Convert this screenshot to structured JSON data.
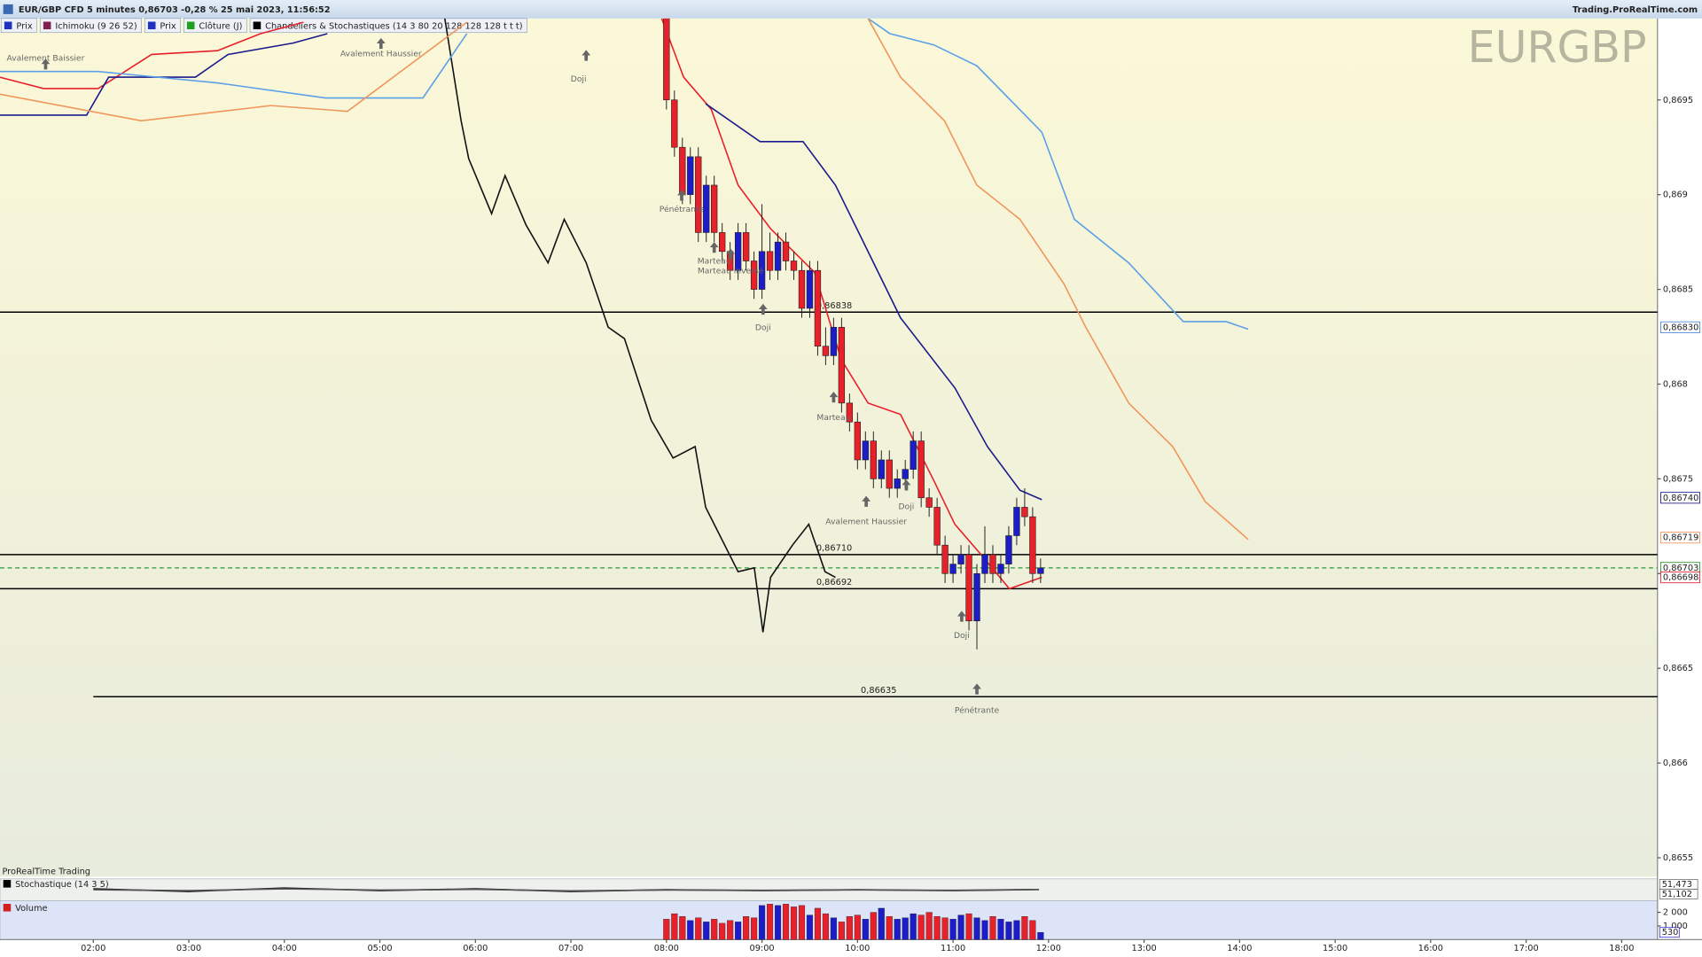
{
  "header": {
    "title": "EUR/GBP CFD 5 minutes 0,86703 -0,28 % 25 mai 2023, 11:56:52",
    "site": "Trading.ProRealTime.com",
    "legend": [
      "Prix",
      "Ichimoku (9 26 52)",
      "Prix",
      "Clôture (J)",
      "Chandeliers & Stochastiques (14 3 80 20 128 128 128 t t t)"
    ],
    "footer": "ProRealTime Trading"
  },
  "chart_data": [
    {
      "type": "candlestick",
      "title": "EURGBP",
      "x": [
        "08:00",
        "08:05",
        "08:10",
        "08:15",
        "08:20",
        "08:25",
        "08:30",
        "08:35",
        "08:40",
        "08:45",
        "08:50",
        "08:55",
        "09:00",
        "09:05",
        "09:10",
        "09:15",
        "09:20",
        "09:25",
        "09:30",
        "09:35",
        "09:40",
        "09:45",
        "09:50",
        "09:55",
        "10:00",
        "10:05",
        "10:10",
        "10:15",
        "10:20",
        "10:25",
        "10:30",
        "10:35",
        "10:40",
        "10:45",
        "10:50",
        "10:55",
        "11:00",
        "11:05",
        "11:10",
        "11:15",
        "11:20",
        "11:25",
        "11:30",
        "11:35",
        "11:40",
        "11:45",
        "11:50",
        "11:55"
      ],
      "open": [
        0.86995,
        0.8695,
        0.86925,
        0.869,
        0.8692,
        0.8688,
        0.86905,
        0.8688,
        0.8687,
        0.8686,
        0.8688,
        0.86865,
        0.8685,
        0.8687,
        0.8686,
        0.86875,
        0.86865,
        0.8686,
        0.8684,
        0.8686,
        0.8682,
        0.86815,
        0.8683,
        0.8679,
        0.8678,
        0.8676,
        0.8677,
        0.8675,
        0.8676,
        0.86745,
        0.8675,
        0.86755,
        0.8677,
        0.8674,
        0.86735,
        0.86715,
        0.867,
        0.86705,
        0.8671,
        0.86675,
        0.867,
        0.8671,
        0.867,
        0.86705,
        0.8672,
        0.86735,
        0.8673,
        0.867
      ],
      "high": [
        0.87,
        0.86955,
        0.8693,
        0.86925,
        0.86925,
        0.8691,
        0.8691,
        0.86885,
        0.86875,
        0.86885,
        0.86885,
        0.8687,
        0.86895,
        0.8688,
        0.8688,
        0.8688,
        0.8687,
        0.86865,
        0.86865,
        0.86865,
        0.8683,
        0.86835,
        0.86835,
        0.86795,
        0.86785,
        0.86775,
        0.86775,
        0.86765,
        0.86765,
        0.86755,
        0.8676,
        0.86775,
        0.86775,
        0.86745,
        0.8674,
        0.8672,
        0.8671,
        0.86715,
        0.86715,
        0.86705,
        0.86725,
        0.86715,
        0.8671,
        0.86725,
        0.8674,
        0.86745,
        0.86735,
        0.86708
      ],
      "low": [
        0.86945,
        0.8692,
        0.86895,
        0.86895,
        0.86875,
        0.86875,
        0.86875,
        0.86865,
        0.86855,
        0.86855,
        0.8686,
        0.86845,
        0.86845,
        0.86855,
        0.86855,
        0.8686,
        0.86855,
        0.86835,
        0.86835,
        0.86815,
        0.8681,
        0.8681,
        0.86785,
        0.86775,
        0.86755,
        0.86755,
        0.86745,
        0.86745,
        0.8674,
        0.8674,
        0.86745,
        0.8675,
        0.86735,
        0.8673,
        0.8671,
        0.86695,
        0.86695,
        0.867,
        0.8667,
        0.8666,
        0.86695,
        0.86695,
        0.86695,
        0.867,
        0.86715,
        0.86725,
        0.86695,
        0.86695
      ],
      "close": [
        0.8695,
        0.86925,
        0.869,
        0.8692,
        0.8688,
        0.86905,
        0.8688,
        0.8687,
        0.8686,
        0.8688,
        0.86865,
        0.8685,
        0.8687,
        0.8686,
        0.86875,
        0.86865,
        0.8686,
        0.8684,
        0.8686,
        0.8682,
        0.86815,
        0.8683,
        0.8679,
        0.8678,
        0.8676,
        0.8677,
        0.8675,
        0.8676,
        0.86745,
        0.8675,
        0.86755,
        0.8677,
        0.8674,
        0.86735,
        0.86715,
        0.867,
        0.86705,
        0.8671,
        0.86675,
        0.867,
        0.8671,
        0.867,
        0.86705,
        0.8672,
        0.86735,
        0.8673,
        0.867,
        0.86703
      ],
      "up_color": "#1c1cc8",
      "down_color": "#e8202a",
      "series": [
        {
          "color": "#e8202a",
          "x": [
            1.02,
            1.48,
            2.05,
            2.61,
            3.3,
            3.75,
            4.2,
            6.0,
            7.95,
            8.18,
            8.47,
            8.75,
            9.09,
            9.55,
            9.83,
            10.11,
            10.45,
            10.8,
            11.02,
            11.31,
            11.59,
            11.93
          ],
          "values": [
            0.86962,
            0.86956,
            0.86956,
            0.86974,
            0.86976,
            0.86985,
            0.86991,
            null,
            0.86993,
            0.86962,
            0.86945,
            0.86905,
            0.86882,
            0.86859,
            0.86813,
            0.8679,
            0.86784,
            0.86749,
            0.86726,
            0.86709,
            0.86692,
            0.86698
          ]
        },
        {
          "color": "#1a1a8c",
          "x": [
            1.02,
            1.93,
            2.16,
            3.07,
            3.41,
            4.09,
            4.45,
            6.0,
            8.41,
            8.98,
            9.43,
            9.77,
            10.11,
            10.45,
            11.02,
            11.36,
            11.7,
            11.93
          ],
          "values": [
            0.86942,
            0.86942,
            0.86962,
            0.86962,
            0.86974,
            0.8698,
            0.86985,
            null,
            0.86948,
            0.86928,
            0.86928,
            0.86905,
            0.8687,
            0.86835,
            0.86798,
            0.86767,
            0.86744,
            0.86739
          ]
        },
        {
          "color": "#111111",
          "x": [
            5.68,
            5.85,
            5.93,
            6.17,
            6.31,
            6.53,
            6.76,
            6.93,
            7.16,
            7.39,
            7.56,
            7.84,
            8.07,
            8.3,
            8.41,
            8.75,
            8.92,
            9.01,
            9.09,
            9.32,
            9.49,
            9.66,
            9.77
          ],
          "values": [
            0.86993,
            0.86939,
            0.86919,
            0.8689,
            0.8691,
            0.86884,
            0.86864,
            0.86887,
            0.86864,
            0.8683,
            0.86824,
            0.86781,
            0.86761,
            0.86767,
            0.86735,
            0.86701,
            0.86703,
            0.86669,
            0.86698,
            0.86715,
            0.86726,
            0.86701,
            0.86698
          ]
        },
        {
          "color": "#5aa0e8",
          "x": [
            1.02,
            2.05,
            3.3,
            4.43,
            5.45,
            5.91,
            6.5,
            10.11,
            10.34,
            10.8,
            11.25,
            11.93,
            12.27,
            12.84,
            13.41,
            13.86,
            14.09
          ],
          "values": [
            0.86965,
            0.86965,
            0.86959,
            0.86951,
            0.86951,
            0.86985,
            null,
            0.86993,
            0.86985,
            0.86979,
            0.86968,
            0.86933,
            0.86887,
            0.86864,
            0.86833,
            0.86833,
            0.86829
          ]
        },
        {
          "color": "#f0965a",
          "x": [
            1.02,
            2.5,
            3.86,
            4.66,
            5.91,
            6.5,
            10.11,
            10.45,
            10.91,
            11.25,
            11.7,
            12.16,
            12.39,
            12.84,
            13.3,
            13.64,
            14.09
          ],
          "values": [
            0.86953,
            0.86939,
            0.86947,
            0.86944,
            0.86991,
            null,
            0.86993,
            0.86962,
            0.86939,
            0.86905,
            0.86887,
            0.86853,
            0.8683,
            0.8679,
            0.86767,
            0.86738,
            0.86718
          ]
        }
      ],
      "levels": [
        {
          "value": 0.86838,
          "label": "0,86838"
        },
        {
          "value": 0.8671,
          "label": "0,86710"
        },
        {
          "value": 0.86692,
          "label": "0,86692"
        },
        {
          "value": 0.86635,
          "label": "0,86635"
        }
      ],
      "current": 0.86703,
      "price_labels": [
        {
          "value": 0.8683,
          "label": "0,86830",
          "color": "#4a8ad8"
        },
        {
          "value": 0.8674,
          "label": "0,86740",
          "color": "#1a1a8c"
        },
        {
          "value": 0.86719,
          "label": "0,86719",
          "color": "#f0965a"
        },
        {
          "value": 0.86703,
          "label": "0,86703",
          "color": "#f5c400"
        },
        {
          "value": 0.86703,
          "label": "0,86703",
          "color": "#2a9a3a"
        },
        {
          "value": 0.86698,
          "label": "0,86698",
          "color": "#e8202a"
        }
      ],
      "annotations": [
        "Pénétrante",
        "Marteau",
        "Doji",
        "Marteau",
        "Avalement Haussier",
        "Doji",
        "Doji",
        "Pénétrante",
        "Avalement Baissier",
        "Avalement Haussier",
        "Doji",
        "Marteau inversé"
      ],
      "xlim": [
        1.023,
        18.375
      ],
      "xticks": [
        {
          "value": 2,
          "label": "02:00"
        },
        {
          "value": 3,
          "label": "03:00"
        },
        {
          "value": 4,
          "label": "04:00"
        },
        {
          "value": 5,
          "label": "05:00"
        },
        {
          "value": 6,
          "label": "06:00"
        },
        {
          "value": 7,
          "label": "07:00"
        },
        {
          "value": 8,
          "label": "08:00"
        },
        {
          "value": 9,
          "label": "09:00"
        },
        {
          "value": 10,
          "label": "10:00"
        },
        {
          "value": 11,
          "label": "11:00"
        },
        {
          "value": 12,
          "label": "12:00"
        },
        {
          "value": 13,
          "label": "13:00"
        },
        {
          "value": 14,
          "label": "14:00"
        },
        {
          "value": 15,
          "label": "15:00"
        },
        {
          "value": 16,
          "label": "16:00"
        },
        {
          "value": 17,
          "label": "17:00"
        },
        {
          "value": 18,
          "label": "18:00"
        }
      ],
      "ylim": [
        0.8654,
        0.86993
      ],
      "yticks": [
        {
          "value": 0.8655,
          "label": "0,8655"
        },
        {
          "value": 0.866,
          "label": "0,866"
        },
        {
          "value": 0.8665,
          "label": "0,8665"
        },
        {
          "value": 0.867,
          "label": "0,867"
        },
        {
          "value": 0.8675,
          "label": "0,8675"
        },
        {
          "value": 0.868,
          "label": "0,868"
        },
        {
          "value": 0.8685,
          "label": "0,8685"
        },
        {
          "value": 0.869,
          "label": "0,869"
        },
        {
          "value": 0.8695,
          "label": "0,8695"
        }
      ]
    },
    {
      "type": "line",
      "title": "Stochastique (14 3 5)",
      "ylim": [
        0,
        100
      ],
      "series": [
        {
          "color": "#111111",
          "x": [
            2,
            3,
            4,
            5,
            6,
            7,
            8,
            9,
            10,
            11,
            11.9
          ],
          "values": [
            55,
            40,
            60,
            45,
            55,
            40,
            50,
            45,
            50,
            45,
            51.473
          ]
        },
        {
          "color": "#555555",
          "x": [
            2,
            3,
            4,
            5,
            6,
            7,
            8,
            9,
            10,
            11,
            11.9
          ],
          "values": [
            50,
            45,
            55,
            48,
            52,
            44,
            48,
            47,
            49,
            47,
            51.102
          ]
        }
      ],
      "last_labels": [
        {
          "value": 51.473,
          "label": "51,473"
        },
        {
          "value": 51.102,
          "label": "51,102"
        }
      ]
    },
    {
      "type": "bar",
      "title": "Volume",
      "x": [
        "08:00",
        "08:05",
        "08:10",
        "08:15",
        "08:20",
        "08:25",
        "08:30",
        "08:35",
        "08:40",
        "08:45",
        "08:50",
        "08:55",
        "09:00",
        "09:05",
        "09:10",
        "09:15",
        "09:20",
        "09:25",
        "09:30",
        "09:35",
        "09:40",
        "09:45",
        "09:50",
        "09:55",
        "10:00",
        "10:05",
        "10:10",
        "10:15",
        "10:20",
        "10:25",
        "10:30",
        "10:35",
        "10:40",
        "10:45",
        "10:50",
        "10:55",
        "11:00",
        "11:05",
        "11:10",
        "11:15",
        "11:20",
        "11:25",
        "11:30",
        "11:35",
        "11:40",
        "11:45",
        "11:50",
        "11:55"
      ],
      "values": [
        1500,
        1900,
        1700,
        1400,
        1600,
        1300,
        1500,
        1200,
        1400,
        1300,
        1700,
        1600,
        2500,
        2600,
        2500,
        2600,
        2400,
        2500,
        1800,
        2300,
        1900,
        1600,
        1300,
        1700,
        1800,
        1500,
        2000,
        2300,
        1700,
        1500,
        1600,
        1900,
        1800,
        2000,
        1700,
        1600,
        1500,
        1800,
        1900,
        1600,
        1400,
        1700,
        1500,
        1300,
        1400,
        1700,
        1400,
        530
      ],
      "ylim": [
        0,
        2700
      ],
      "yticks": [
        {
          "value": 2000,
          "label": "2 000"
        },
        {
          "value": 1000,
          "label": "1 000"
        }
      ],
      "last_label": {
        "value": 530,
        "label": "530"
      }
    }
  ]
}
